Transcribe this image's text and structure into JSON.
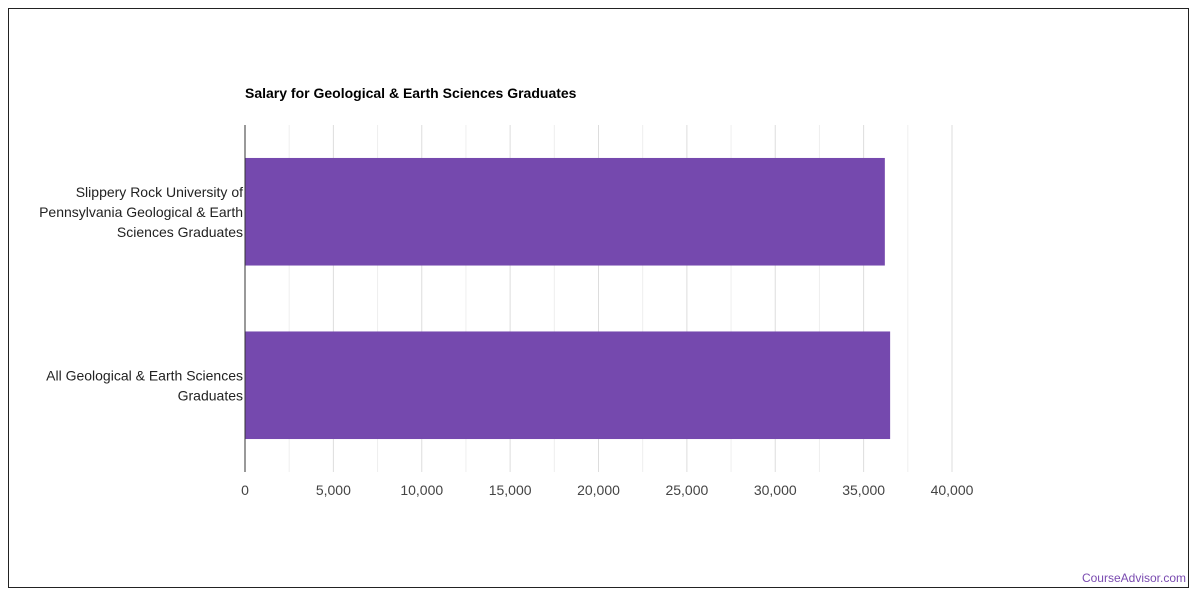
{
  "chart_data": {
    "type": "bar",
    "orientation": "horizontal",
    "title": "Salary for Geological & Earth Sciences Graduates",
    "categories": [
      [
        "Slippery Rock University of",
        "Pennsylvania Geological & Earth",
        "Sciences Graduates"
      ],
      [
        "All Geological & Earth Sciences",
        "Graduates"
      ]
    ],
    "values": [
      36200,
      36500
    ],
    "xlim": [
      0,
      40000
    ],
    "xticks": [
      "0",
      "5,000",
      "10,000",
      "15,000",
      "20,000",
      "25,000",
      "30,000",
      "35,000",
      "40,000"
    ],
    "tick_values": [
      0,
      5000,
      10000,
      15000,
      20000,
      25000,
      30000,
      35000,
      40000
    ],
    "minor_gridlines": true,
    "bar_color": "#7549ae",
    "grid_color": "#dddddd"
  },
  "watermark": "CourseAdvisor.com",
  "colors": {
    "watermark": "#7a4bb0"
  }
}
